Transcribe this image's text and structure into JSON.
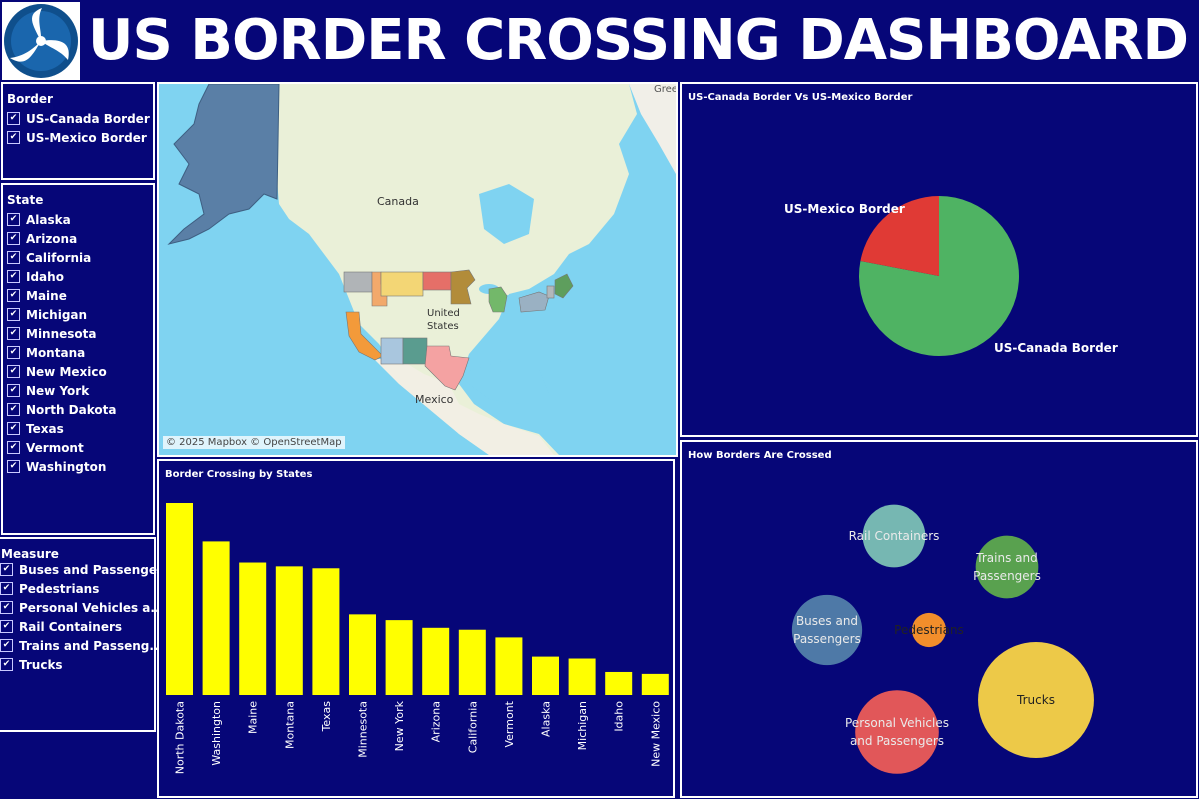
{
  "header": {
    "title": "US BORDER CROSSING DASHBOARD",
    "logo_icon": "dot-triskelion-logo"
  },
  "filters": {
    "border": {
      "title": "Border",
      "items": [
        "US-Canada Border",
        "US-Mexico Border"
      ]
    },
    "state": {
      "title": "State",
      "items": [
        "Alaska",
        "Arizona",
        "California",
        "Idaho",
        "Maine",
        "Michigan",
        "Minnesota",
        "Montana",
        "New Mexico",
        "New York",
        "North Dakota",
        "Texas",
        "Vermont",
        "Washington"
      ]
    },
    "measure": {
      "title": "Measure",
      "items": [
        "Buses and Passenge..",
        "Pedestrians",
        "Personal Vehicles a..",
        "Rail Containers",
        "Trains and Passeng..",
        "Trucks"
      ]
    }
  },
  "map": {
    "labels": {
      "canada": "Canada",
      "us_line1": "United",
      "us_line2": "States",
      "mexico": "Mexico",
      "greenland": "Gree"
    },
    "attribution": "© 2025 Mapbox © OpenStreetMap"
  },
  "colors": {
    "background": "#060678",
    "bar": "#ffff00",
    "canada_slice": "#4fb363",
    "mexico_slice": "#e03a35"
  },
  "pie_chart": {
    "title": "US-Canada Border Vs US-Mexico Border",
    "chart_data": {
      "type": "pie",
      "slices": [
        {
          "label": "US-Canada Border",
          "value": 78,
          "color": "#4fb363"
        },
        {
          "label": "US-Mexico Border",
          "value": 22,
          "color": "#e03a35"
        }
      ]
    }
  },
  "bar_chart": {
    "title": "Border Crossing by States",
    "chart_data": {
      "type": "bar",
      "categories": [
        "North Dakota",
        "Washington",
        "Maine",
        "Montana",
        "Texas",
        "Minnesota",
        "New York",
        "Arizona",
        "California",
        "Vermont",
        "Alaska",
        "Michigan",
        "Idaho",
        "New Mexico"
      ],
      "values": [
        100,
        80,
        69,
        67,
        66,
        42,
        39,
        35,
        34,
        30,
        20,
        19,
        12,
        11
      ]
    }
  },
  "bubble_chart": {
    "title": "How Borders Are Crossed",
    "chart_data": {
      "type": "bubble",
      "items": [
        {
          "label": "Rail Containers",
          "lines": [
            "Rail Containers"
          ],
          "value": 33,
          "color": "#76b7b2"
        },
        {
          "label": "Trains and Passengers",
          "lines": [
            "Trains and",
            "Passengers"
          ],
          "value": 33,
          "color": "#59a14f"
        },
        {
          "label": "Buses and Passengers",
          "lines": [
            "Buses and",
            "Passengers"
          ],
          "value": 37,
          "color": "#4e79a7"
        },
        {
          "label": "Pedestrians",
          "lines": [
            "Pedestrians"
          ],
          "value": 18,
          "color": "#f28e2b"
        },
        {
          "label": "Personal Vehicles and Passengers",
          "lines": [
            "Personal Vehicles",
            "and Passengers"
          ],
          "value": 44,
          "color": "#e15759"
        },
        {
          "label": "Trucks",
          "lines": [
            "Trucks"
          ],
          "value": 61,
          "color": "#edc948"
        }
      ]
    }
  }
}
